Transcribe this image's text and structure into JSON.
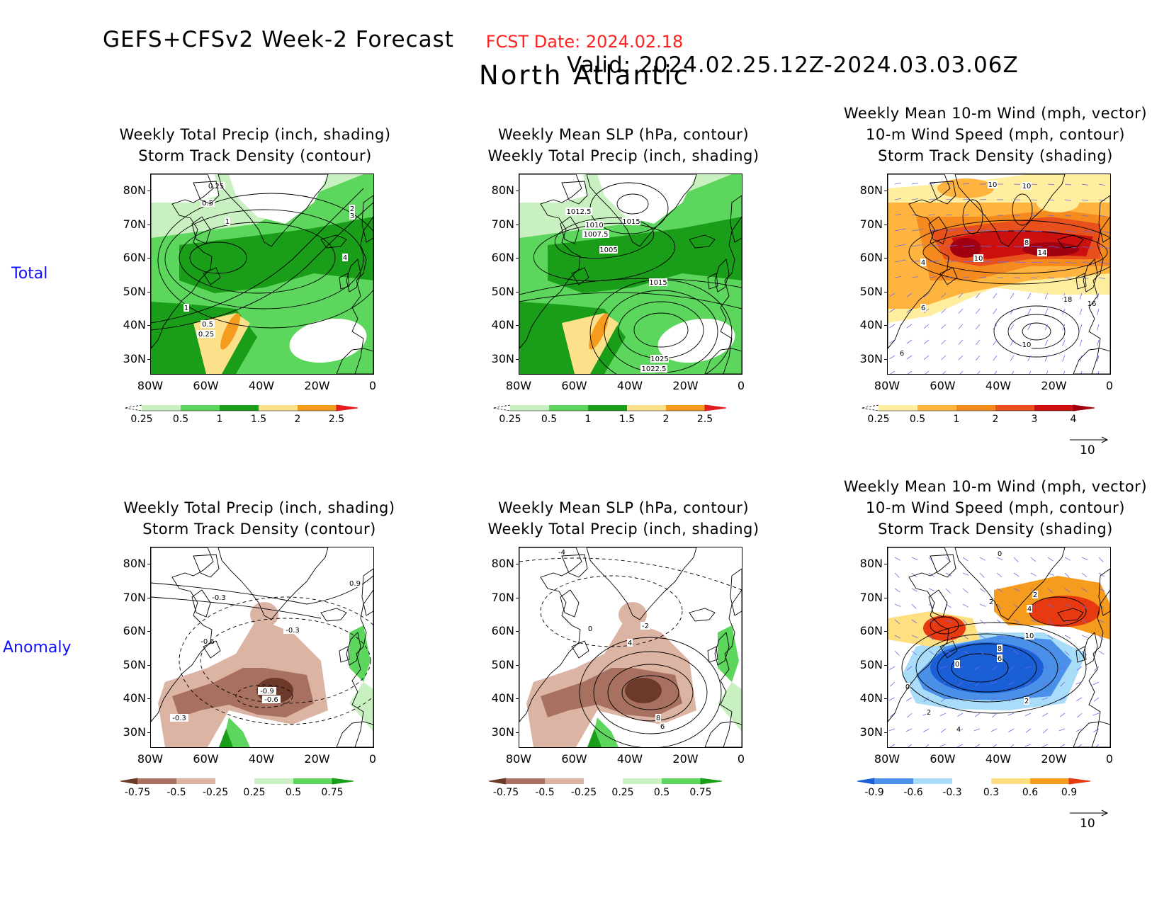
{
  "header": {
    "model_title": "GEFS+CFSv2 Week-2 Forecast",
    "valid": "Valid: 2024.02.25.12Z-2024.03.03.06Z",
    "fcst_date": "FCST Date: 2024.02.18",
    "region": "North Atlantic"
  },
  "rows": {
    "total": "Total",
    "anomaly": "Anomaly"
  },
  "panel_titles": {
    "precip_track": [
      "Weekly Total Precip (inch, shading)",
      "Storm Track Density (contour)"
    ],
    "slp_precip": [
      "Weekly Mean SLP (hPa, contour)",
      "Weekly Total Precip (inch, shading)"
    ],
    "wind_track": [
      "Weekly Mean 10-m Wind (mph, vector)",
      "10-m Wind Speed (mph, contour)",
      "Storm Track Density (shading)"
    ]
  },
  "axes": {
    "lat_labels": [
      "80N",
      "70N",
      "60N",
      "50N",
      "40N",
      "30N"
    ],
    "lon_labels": [
      "80W",
      "60W",
      "40W",
      "20W",
      "0"
    ]
  },
  "colorbars": {
    "precip_total": {
      "ticks": [
        "0.25",
        "0.5",
        "1",
        "1.5",
        "2",
        "2.5"
      ],
      "colors": [
        "#ffffff",
        "#c8f0c0",
        "#5cd65c",
        "#1a9e1a",
        "#fce08a",
        "#f59b1d",
        "#e41a1c"
      ]
    },
    "track_total": {
      "ticks": [
        "0.25",
        "0.5",
        "1",
        "2",
        "3",
        "4"
      ],
      "colors": [
        "#ffffff",
        "#ffeea0",
        "#ffb440",
        "#f58a1e",
        "#e8501c",
        "#cc1010",
        "#a00010"
      ]
    },
    "precip_anom": {
      "ticks": [
        "-0.75",
        "-0.5",
        "-0.25",
        "0.25",
        "0.5",
        "0.75"
      ],
      "colors": [
        "#6b3a2a",
        "#a87060",
        "#dcb4a4",
        "#ffffff",
        "#c8f0c0",
        "#5cd65c",
        "#1a9e1a"
      ]
    },
    "track_anom": {
      "ticks": [
        "-0.9",
        "-0.6",
        "-0.3",
        "0.3",
        "0.6",
        "0.9"
      ],
      "colors": [
        "#1a5fd6",
        "#4a90e8",
        "#a8dcf8",
        "#ffffff",
        "#ffe080",
        "#f59b1d",
        "#e83a10"
      ]
    }
  },
  "vector_ref": "10",
  "contour_labels": {
    "p1": [
      "0.25",
      "0.5",
      "1",
      "2",
      "3",
      "4",
      "1",
      "0.5",
      "0.25"
    ],
    "p2": [
      "1012.5",
      "1010",
      "1007.5",
      "1015",
      "1005",
      "1015",
      "1025",
      "1022.5"
    ],
    "p3": [
      "10",
      "10",
      "8",
      "10",
      "14",
      "4",
      "6",
      "18",
      "16",
      "10",
      "6"
    ],
    "p4": [
      "0.9",
      "-0.3",
      "-0.3",
      "-0.6",
      "-0.9",
      "-0.6",
      "-0.3"
    ],
    "p5": [
      "-4",
      "-2",
      "0",
      "4",
      "8",
      "6"
    ],
    "p6": [
      "0",
      "2",
      "2",
      "4",
      "10",
      "8",
      "6",
      "0",
      "0",
      "2",
      "2",
      "4"
    ]
  }
}
